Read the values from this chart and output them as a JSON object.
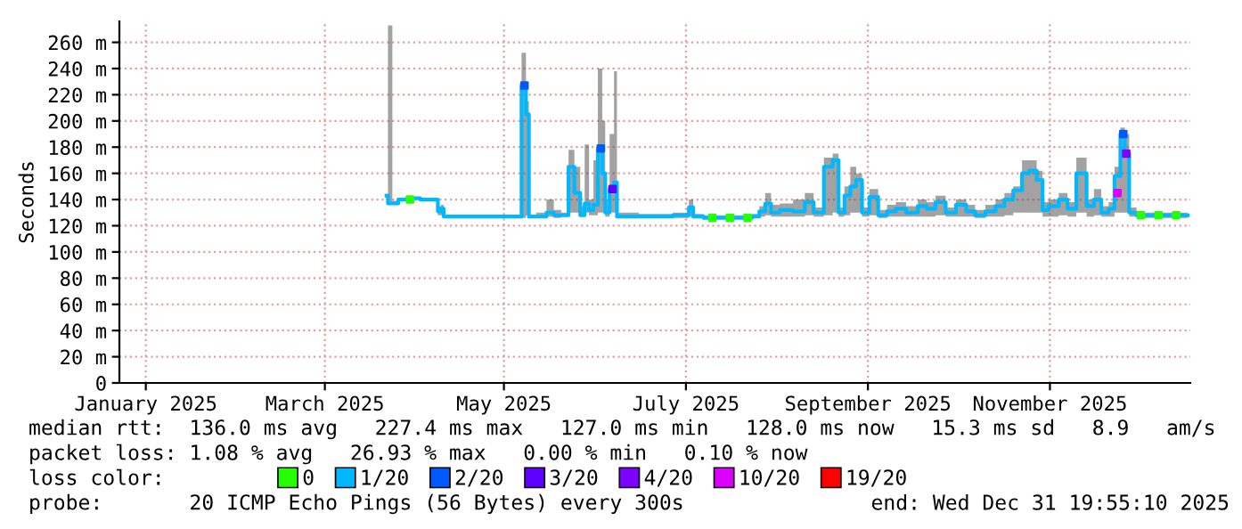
{
  "chart_data": {
    "type": "line",
    "ylabel": "Seconds",
    "legend_title": "loss color:",
    "legend": "bottom",
    "grid": true,
    "marker": "none",
    "line_style": "solid",
    "xlim": [
      "2025-01-01",
      "2025-12-31T19:55"
    ],
    "xticks": [
      {
        "value": "2025-01-10",
        "label": "January 2025"
      },
      {
        "value": "2025-03-12",
        "label": "March 2025"
      },
      {
        "value": "2025-05-12",
        "label": "May 2025"
      },
      {
        "value": "2025-07-13",
        "label": "July 2025"
      },
      {
        "value": "2025-09-13",
        "label": "September 2025"
      },
      {
        "value": "2025-11-14",
        "label": "November 2025"
      }
    ],
    "ylim": [
      0,
      276
    ],
    "yticks": [
      0,
      {
        "value": 20,
        "label": "20 m"
      },
      {
        "value": 40,
        "label": "40 m"
      },
      {
        "value": 60,
        "label": "60 m"
      },
      {
        "value": 80,
        "label": "80 m"
      },
      {
        "value": 100,
        "label": "100 m"
      },
      {
        "value": 120,
        "label": "120 m"
      },
      {
        "value": 140,
        "label": "140 m"
      },
      {
        "value": 160,
        "label": "160 m"
      },
      {
        "value": 180,
        "label": "180 m"
      },
      {
        "value": 200,
        "label": "200 m"
      },
      {
        "value": 220,
        "label": "220 m"
      },
      {
        "value": 240,
        "label": "240 m"
      },
      {
        "value": 260,
        "label": "260 m"
      }
    ],
    "series": [
      {
        "name": "0",
        "color": "#26ff00",
        "type": "scatter",
        "marker": "square",
        "x": [
          "2025-04-10",
          "2025-07-22",
          "2025-07-28",
          "2025-08-03",
          "2025-12-15",
          "2025-12-21",
          "2025-12-27"
        ],
        "values": [
          140,
          126,
          126,
          126,
          128,
          128,
          128
        ]
      },
      {
        "name": "1/20",
        "color": "#00b8ff",
        "x": [
          "2025-04-02",
          "2025-04-03",
          "2025-04-05",
          "2025-04-07",
          "2025-04-11",
          "2025-04-16",
          "2025-04-19",
          "2025-04-20",
          "2025-04-21",
          "2025-04-22",
          "2025-04-28",
          "2025-05-10",
          "2025-05-17",
          "2025-05-19",
          "2025-05-20",
          "2025-05-21",
          "2025-05-25",
          "2025-05-28",
          "2025-05-30",
          "2025-06-02",
          "2025-06-04",
          "2025-06-06",
          "2025-06-08",
          "2025-06-09",
          "2025-06-11",
          "2025-06-12",
          "2025-06-14",
          "2025-06-15",
          "2025-06-16",
          "2025-06-18",
          "2025-06-19",
          "2025-06-20",
          "2025-07-04",
          "2025-07-13",
          "2025-07-15",
          "2025-07-16",
          "2025-07-22",
          "2025-07-28",
          "2025-08-03",
          "2025-08-06",
          "2025-08-08",
          "2025-08-10",
          "2025-08-12",
          "2025-08-16",
          "2025-08-21",
          "2025-08-24",
          "2025-08-27",
          "2025-08-31",
          "2025-09-02",
          "2025-09-04",
          "2025-09-06",
          "2025-09-08",
          "2025-09-10",
          "2025-09-12",
          "2025-09-15",
          "2025-09-18",
          "2025-09-21",
          "2025-09-24",
          "2025-09-28",
          "2025-10-02",
          "2025-10-04",
          "2025-10-08",
          "2025-10-11",
          "2025-10-15",
          "2025-10-18",
          "2025-10-21",
          "2025-10-25",
          "2025-10-28",
          "2025-10-31",
          "2025-11-03",
          "2025-11-06",
          "2025-11-08",
          "2025-11-11",
          "2025-11-12",
          "2025-11-15",
          "2025-11-19",
          "2025-11-21",
          "2025-11-25",
          "2025-11-28",
          "2025-11-30",
          "2025-12-03",
          "2025-12-05",
          "2025-12-07",
          "2025-12-09",
          "2025-12-10",
          "2025-12-12",
          "2025-12-15",
          "2025-12-21",
          "2025-12-27",
          "2025-12-31"
        ],
        "values": [
          143,
          137,
          137,
          140,
          141,
          140,
          140,
          131,
          133,
          127,
          127,
          127,
          127,
          227,
          205,
          127,
          127,
          130,
          128,
          128,
          165,
          145,
          128,
          137,
          132,
          136,
          179,
          160,
          130,
          148,
          153,
          127,
          127,
          128,
          134,
          127,
          126,
          126,
          126,
          127,
          131,
          137,
          130,
          132,
          131,
          138,
          130,
          165,
          170,
          130,
          143,
          150,
          155,
          130,
          142,
          128,
          131,
          133,
          130,
          135,
          133,
          138,
          130,
          136,
          131,
          128,
          131,
          135,
          140,
          147,
          160,
          162,
          155,
          132,
          135,
          140,
          133,
          160,
          135,
          140,
          130,
          133,
          158,
          190,
          175,
          130,
          128,
          128,
          128,
          128
        ],
        "lower": [
          140,
          136,
          136,
          139,
          140,
          139,
          139,
          128,
          128,
          126,
          126,
          126,
          126,
          126,
          128,
          126,
          126,
          127,
          126,
          127,
          130,
          130,
          127,
          130,
          128,
          128,
          130,
          130,
          127,
          130,
          130,
          126,
          126,
          126,
          127,
          126,
          125,
          125,
          125,
          126,
          127,
          128,
          127,
          127,
          127,
          128,
          127,
          128,
          130,
          127,
          128,
          130,
          130,
          127,
          128,
          126,
          127,
          127,
          127,
          127,
          127,
          128,
          127,
          127,
          127,
          126,
          127,
          127,
          128,
          130,
          130,
          130,
          130,
          127,
          127,
          128,
          127,
          130,
          127,
          128,
          127,
          127,
          130,
          130,
          130,
          127,
          126,
          126,
          126,
          126
        ],
        "upper": [
          143,
          273,
          139,
          141,
          142,
          141,
          141,
          135,
          136,
          128,
          128,
          128,
          128,
          252,
          215,
          128,
          130,
          140,
          132,
          130,
          178,
          165,
          135,
          182,
          140,
          170,
          240,
          200,
          140,
          190,
          238,
          130,
          129,
          130,
          140,
          129,
          128,
          128,
          128,
          129,
          135,
          145,
          136,
          137,
          140,
          145,
          134,
          172,
          175,
          134,
          150,
          165,
          160,
          134,
          148,
          132,
          136,
          138,
          135,
          140,
          138,
          143,
          134,
          140,
          136,
          132,
          136,
          140,
          145,
          150,
          170,
          170,
          162,
          138,
          140,
          145,
          138,
          172,
          140,
          148,
          135,
          138,
          165,
          195,
          190,
          134,
          130,
          130,
          130,
          130
        ]
      },
      {
        "name": "2/20",
        "color": "#0059ff",
        "type": "scatter",
        "marker": "square",
        "x": [
          "2025-05-19",
          "2025-06-14",
          "2025-12-09"
        ],
        "values": [
          227,
          179,
          190
        ]
      },
      {
        "name": "3/20",
        "color": "#5e00ff",
        "type": "scatter",
        "marker": "square",
        "x": [
          "2025-06-18"
        ],
        "values": [
          148
        ]
      },
      {
        "name": "4/20",
        "color": "#7e00ff",
        "type": "scatter",
        "marker": "square",
        "x": [
          "2025-12-10"
        ],
        "values": [
          175
        ]
      },
      {
        "name": "10/20",
        "color": "#dd00ff",
        "type": "scatter",
        "marker": "square",
        "x": [
          "2025-12-07"
        ],
        "values": [
          145
        ]
      },
      {
        "name": "19/20",
        "color": "#ff0000",
        "type": "scatter",
        "marker": "square"
      }
    ],
    "annotations": [
      "median rtt:  136.0 ms avg   227.4 ms max   127.0 ms min   128.0 ms now   15.3 ms sd   8.9   am/s",
      "packet loss: 1.08 % avg   26.93 % max   0.00 % min   0.10 % now",
      "probe:       20 ICMP Echo Pings (56 Bytes) every 300s",
      "end: Wed Dec 31 19:55:10 2025"
    ]
  }
}
